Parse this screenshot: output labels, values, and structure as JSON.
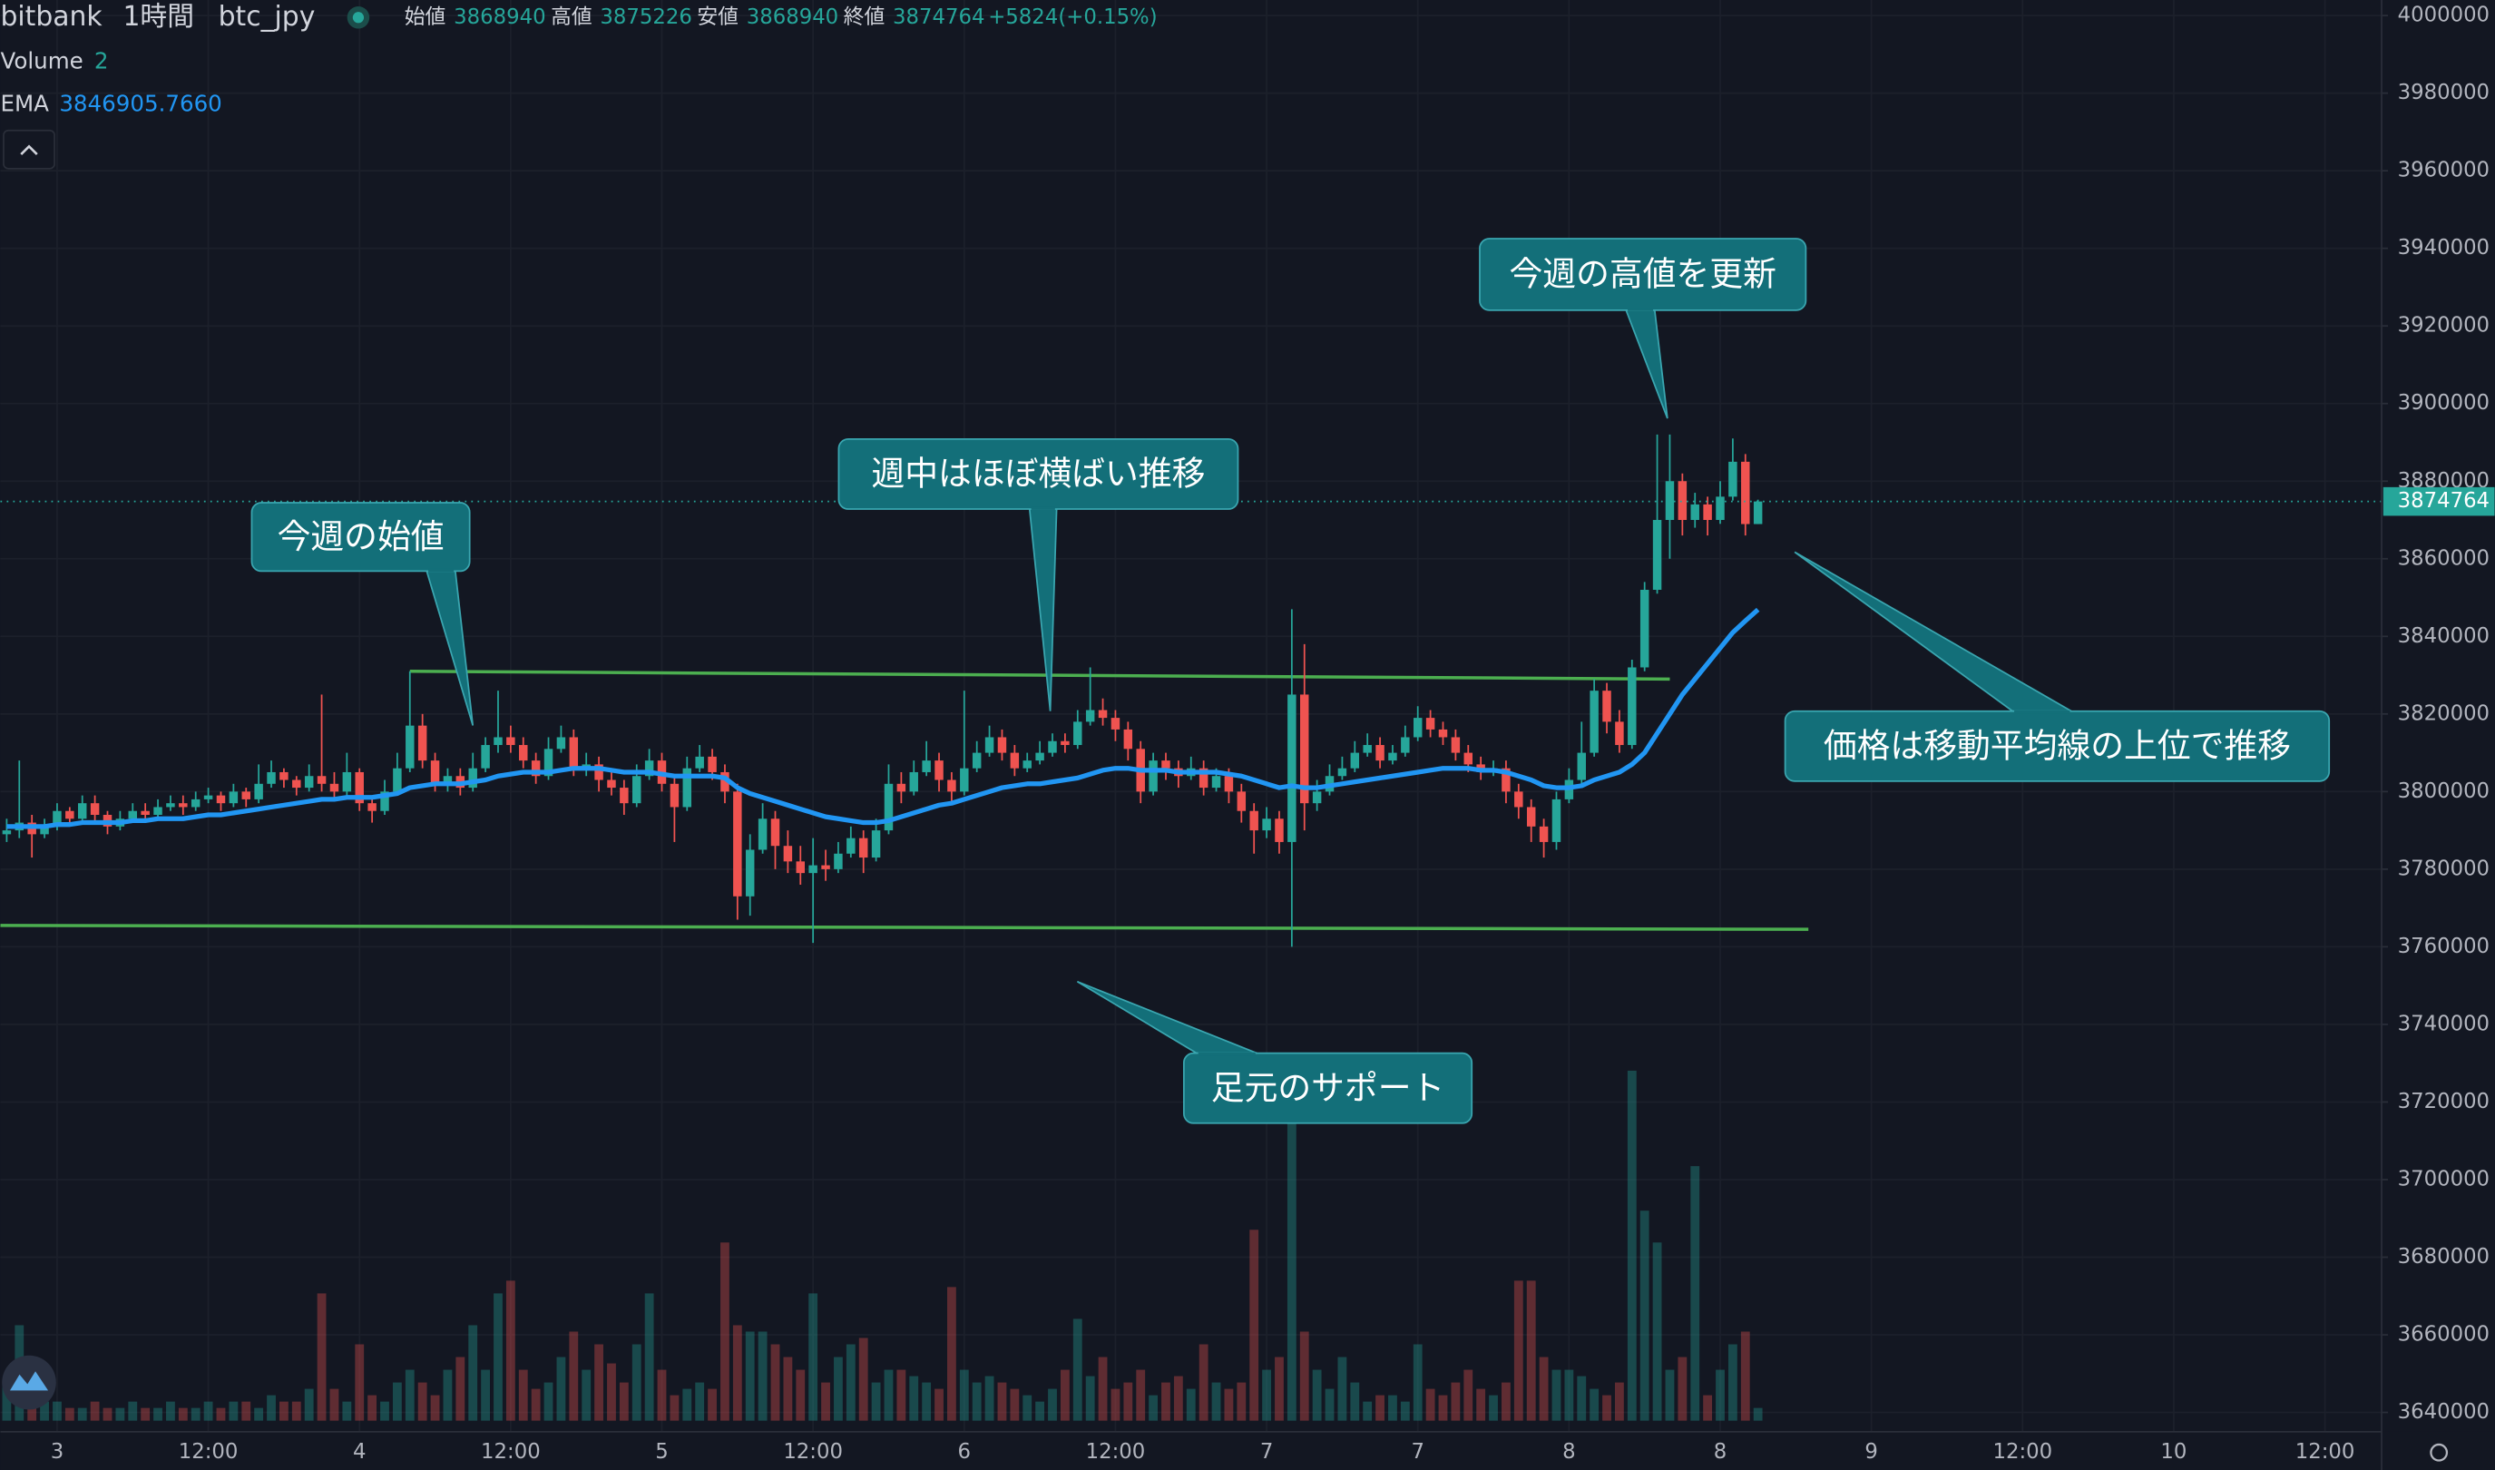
{
  "chart_data": {
    "type": "candlestick",
    "exchange": "bitbank",
    "interval": "1時間",
    "symbol": "btc_jpy",
    "legend_labels": {
      "open": "始値",
      "high": "高値",
      "low": "安値",
      "close": "終値"
    },
    "change": {
      "value": 5824,
      "label": "+5824"
    },
    "change_percent": {
      "value": 0.15,
      "label": "(+0.15%)"
    },
    "up_color": "#26a69a",
    "down_color": "#ef5350",
    "xlim": [
      -0.5,
      188.5
    ],
    "xticks": [
      {
        "value": 4,
        "label": "3"
      },
      {
        "value": 16,
        "label": "12:00"
      },
      {
        "value": 28,
        "label": "4"
      },
      {
        "value": 40,
        "label": "12:00"
      },
      {
        "value": 52,
        "label": "5"
      },
      {
        "value": 64,
        "label": "12:00"
      },
      {
        "value": 76,
        "label": "6"
      },
      {
        "value": 88,
        "label": "12:00"
      },
      {
        "value": 100,
        "label": "7"
      },
      {
        "value": 112,
        "label": "7"
      },
      {
        "value": 124,
        "label": "8"
      },
      {
        "value": 136,
        "label": "8"
      },
      {
        "value": 148,
        "label": "9"
      },
      {
        "value": 160,
        "label": "12:00"
      },
      {
        "value": 172,
        "label": "10"
      },
      {
        "value": 184,
        "label": "12:00"
      }
    ],
    "ylim": [
      3635000,
      4004000
    ],
    "yticks": [
      3640000,
      3660000,
      3680000,
      3700000,
      3720000,
      3740000,
      3760000,
      3780000,
      3800000,
      3820000,
      3840000,
      3860000,
      3880000,
      3900000,
      3920000,
      3940000,
      3960000,
      3980000,
      4000000
    ],
    "grid": true,
    "ohlc": [
      [
        3789000,
        3793000,
        3787000,
        3790000
      ],
      [
        3790000,
        3808000,
        3788000,
        3792000
      ],
      [
        3792000,
        3794000,
        3783000,
        3789000
      ],
      [
        3789000,
        3793000,
        3788000,
        3791000
      ],
      [
        3791000,
        3797000,
        3790000,
        3795000
      ],
      [
        3795000,
        3796000,
        3791000,
        3793000
      ],
      [
        3793000,
        3799000,
        3792000,
        3797000
      ],
      [
        3797000,
        3799000,
        3792000,
        3794000
      ],
      [
        3794000,
        3795000,
        3789000,
        3791000
      ],
      [
        3791000,
        3795000,
        3790000,
        3793000
      ],
      [
        3793000,
        3797000,
        3792000,
        3795000
      ],
      [
        3795000,
        3797000,
        3792000,
        3794000
      ],
      [
        3794000,
        3798000,
        3793000,
        3796000
      ],
      [
        3796000,
        3799000,
        3795000,
        3797000
      ],
      [
        3797000,
        3799000,
        3794000,
        3796000
      ],
      [
        3796000,
        3800000,
        3795000,
        3798000
      ],
      [
        3798000,
        3801000,
        3797000,
        3799000
      ],
      [
        3799000,
        3800000,
        3795000,
        3797000
      ],
      [
        3797000,
        3802000,
        3796000,
        3800000
      ],
      [
        3800000,
        3801000,
        3796000,
        3798000
      ],
      [
        3798000,
        3807000,
        3797000,
        3802000
      ],
      [
        3802000,
        3808000,
        3801000,
        3805000
      ],
      [
        3805000,
        3806000,
        3801000,
        3803000
      ],
      [
        3803000,
        3804000,
        3799000,
        3801000
      ],
      [
        3801000,
        3807000,
        3800000,
        3804000
      ],
      [
        3804000,
        3825000,
        3800000,
        3802000
      ],
      [
        3802000,
        3805000,
        3798000,
        3800000
      ],
      [
        3800000,
        3810000,
        3799000,
        3805000
      ],
      [
        3805000,
        3806000,
        3795000,
        3797000
      ],
      [
        3797000,
        3799000,
        3792000,
        3795000
      ],
      [
        3795000,
        3803000,
        3794000,
        3800000
      ],
      [
        3800000,
        3810000,
        3799000,
        3806000
      ],
      [
        3806000,
        3831000,
        3805000,
        3817000
      ],
      [
        3817000,
        3820000,
        3806000,
        3808000
      ],
      [
        3808000,
        3810000,
        3800000,
        3802000
      ],
      [
        3802000,
        3806000,
        3800000,
        3804000
      ],
      [
        3804000,
        3806000,
        3799000,
        3801000
      ],
      [
        3801000,
        3810000,
        3800000,
        3806000
      ],
      [
        3806000,
        3814000,
        3805000,
        3812000
      ],
      [
        3812000,
        3826000,
        3810000,
        3814000
      ],
      [
        3814000,
        3817000,
        3810000,
        3812000
      ],
      [
        3812000,
        3814000,
        3806000,
        3808000
      ],
      [
        3808000,
        3810000,
        3802000,
        3804000
      ],
      [
        3804000,
        3814000,
        3803000,
        3811000
      ],
      [
        3811000,
        3817000,
        3810000,
        3814000
      ],
      [
        3814000,
        3816000,
        3804000,
        3806000
      ],
      [
        3806000,
        3810000,
        3804000,
        3807000
      ],
      [
        3807000,
        3809000,
        3800000,
        3803000
      ],
      [
        3803000,
        3805000,
        3799000,
        3801000
      ],
      [
        3801000,
        3803000,
        3794000,
        3797000
      ],
      [
        3797000,
        3807000,
        3796000,
        3804000
      ],
      [
        3804000,
        3811000,
        3803000,
        3808000
      ],
      [
        3808000,
        3810000,
        3800000,
        3802000
      ],
      [
        3802000,
        3804000,
        3787000,
        3796000
      ],
      [
        3796000,
        3809000,
        3795000,
        3806000
      ],
      [
        3806000,
        3812000,
        3805000,
        3809000
      ],
      [
        3809000,
        3811000,
        3803000,
        3805000
      ],
      [
        3805000,
        3807000,
        3797000,
        3800000
      ],
      [
        3800000,
        3802000,
        3767000,
        3773000
      ],
      [
        3773000,
        3789000,
        3768000,
        3785000
      ],
      [
        3785000,
        3797000,
        3784000,
        3793000
      ],
      [
        3793000,
        3795000,
        3780000,
        3786000
      ],
      [
        3786000,
        3790000,
        3779000,
        3782000
      ],
      [
        3782000,
        3786000,
        3776000,
        3779000
      ],
      [
        3779000,
        3788000,
        3761000,
        3781000
      ],
      [
        3781000,
        3785000,
        3777000,
        3780000
      ],
      [
        3780000,
        3787000,
        3779000,
        3784000
      ],
      [
        3784000,
        3791000,
        3783000,
        3788000
      ],
      [
        3788000,
        3790000,
        3779000,
        3783000
      ],
      [
        3783000,
        3793000,
        3782000,
        3790000
      ],
      [
        3790000,
        3807000,
        3789000,
        3802000
      ],
      [
        3802000,
        3805000,
        3797000,
        3800000
      ],
      [
        3800000,
        3808000,
        3799000,
        3805000
      ],
      [
        3805000,
        3813000,
        3804000,
        3808000
      ],
      [
        3808000,
        3810000,
        3800000,
        3803000
      ],
      [
        3803000,
        3805000,
        3797000,
        3800000
      ],
      [
        3800000,
        3826000,
        3799000,
        3806000
      ],
      [
        3806000,
        3813000,
        3805000,
        3810000
      ],
      [
        3810000,
        3817000,
        3809000,
        3814000
      ],
      [
        3814000,
        3816000,
        3808000,
        3810000
      ],
      [
        3810000,
        3812000,
        3804000,
        3806000
      ],
      [
        3806000,
        3810000,
        3805000,
        3808000
      ],
      [
        3808000,
        3813000,
        3807000,
        3810000
      ],
      [
        3810000,
        3815000,
        3809000,
        3813000
      ],
      [
        3813000,
        3815000,
        3810000,
        3812000
      ],
      [
        3812000,
        3821000,
        3811000,
        3818000
      ],
      [
        3818000,
        3832000,
        3817000,
        3821000
      ],
      [
        3821000,
        3824000,
        3817000,
        3819000
      ],
      [
        3819000,
        3821000,
        3813000,
        3816000
      ],
      [
        3816000,
        3818000,
        3808000,
        3811000
      ],
      [
        3811000,
        3813000,
        3797000,
        3800000
      ],
      [
        3800000,
        3810000,
        3799000,
        3808000
      ],
      [
        3808000,
        3810000,
        3803000,
        3806000
      ],
      [
        3806000,
        3808000,
        3801000,
        3804000
      ],
      [
        3804000,
        3809000,
        3803000,
        3806000
      ],
      [
        3806000,
        3808000,
        3799000,
        3801000
      ],
      [
        3801000,
        3806000,
        3800000,
        3804000
      ],
      [
        3804000,
        3806000,
        3797000,
        3800000
      ],
      [
        3800000,
        3802000,
        3792000,
        3795000
      ],
      [
        3795000,
        3797000,
        3784000,
        3790000
      ],
      [
        3790000,
        3796000,
        3788000,
        3793000
      ],
      [
        3793000,
        3795000,
        3784000,
        3787000
      ],
      [
        3787000,
        3847000,
        3760000,
        3825000
      ],
      [
        3825000,
        3838000,
        3790000,
        3797000
      ],
      [
        3797000,
        3803000,
        3795000,
        3800000
      ],
      [
        3800000,
        3807000,
        3799000,
        3804000
      ],
      [
        3804000,
        3809000,
        3803000,
        3806000
      ],
      [
        3806000,
        3813000,
        3805000,
        3810000
      ],
      [
        3810000,
        3815000,
        3809000,
        3812000
      ],
      [
        3812000,
        3814000,
        3806000,
        3808000
      ],
      [
        3808000,
        3812000,
        3807000,
        3810000
      ],
      [
        3810000,
        3817000,
        3809000,
        3814000
      ],
      [
        3814000,
        3822000,
        3813000,
        3819000
      ],
      [
        3819000,
        3821000,
        3814000,
        3816000
      ],
      [
        3816000,
        3818000,
        3812000,
        3814000
      ],
      [
        3814000,
        3816000,
        3808000,
        3810000
      ],
      [
        3810000,
        3812000,
        3805000,
        3807000
      ],
      [
        3807000,
        3809000,
        3803000,
        3805000
      ],
      [
        3805000,
        3808000,
        3804000,
        3806000
      ],
      [
        3806000,
        3808000,
        3797000,
        3800000
      ],
      [
        3800000,
        3802000,
        3793000,
        3796000
      ],
      [
        3796000,
        3798000,
        3787000,
        3791000
      ],
      [
        3791000,
        3793000,
        3783000,
        3787000
      ],
      [
        3787000,
        3800000,
        3785000,
        3798000
      ],
      [
        3798000,
        3806000,
        3797000,
        3803000
      ],
      [
        3803000,
        3818000,
        3802000,
        3810000
      ],
      [
        3810000,
        3829000,
        3809000,
        3826000
      ],
      [
        3826000,
        3828000,
        3815000,
        3818000
      ],
      [
        3818000,
        3821000,
        3810000,
        3812000
      ],
      [
        3812000,
        3834000,
        3811000,
        3832000
      ],
      [
        3832000,
        3854000,
        3831000,
        3852000
      ],
      [
        3852000,
        3892000,
        3851000,
        3870000
      ],
      [
        3870000,
        3892000,
        3860000,
        3880000
      ],
      [
        3880000,
        3882000,
        3866000,
        3870000
      ],
      [
        3870000,
        3877000,
        3868000,
        3874000
      ],
      [
        3874000,
        3876000,
        3866000,
        3870000
      ],
      [
        3870000,
        3880000,
        3869000,
        3876000
      ],
      [
        3876000,
        3891000,
        3875000,
        3885000
      ],
      [
        3885000,
        3887000,
        3866000,
        3868940
      ],
      [
        3868940,
        3875226,
        3868940,
        3874764
      ]
    ],
    "volume": {
      "name": "Volume",
      "values": [
        6,
        15,
        4,
        3,
        3,
        2,
        2,
        3,
        2,
        2,
        3,
        2,
        2,
        3,
        2,
        2,
        3,
        2,
        3,
        3,
        2,
        4,
        3,
        3,
        5,
        20,
        5,
        3,
        12,
        4,
        3,
        6,
        8,
        6,
        4,
        8,
        10,
        15,
        8,
        20,
        22,
        8,
        5,
        6,
        10,
        14,
        8,
        12,
        9,
        6,
        12,
        20,
        8,
        4,
        5,
        6,
        5,
        28,
        15,
        14,
        14,
        12,
        10,
        8,
        20,
        6,
        10,
        12,
        13,
        6,
        8,
        8,
        7,
        6,
        5,
        21,
        8,
        6,
        7,
        6,
        5,
        4,
        3,
        5,
        8,
        16,
        7,
        10,
        5,
        6,
        8,
        4,
        6,
        7,
        5,
        12,
        6,
        5,
        6,
        30,
        8,
        10,
        47,
        14,
        8,
        5,
        10,
        6,
        3,
        4,
        4,
        3,
        12,
        5,
        4,
        6,
        8,
        5,
        4,
        6,
        22,
        22,
        10,
        8,
        8,
        7,
        5,
        4,
        6,
        55,
        33,
        28,
        8,
        10,
        40,
        4,
        8,
        12,
        14,
        2
      ]
    },
    "ema": {
      "name": "EMA",
      "color": "#2196f3",
      "last_value_label": "3846905.7660",
      "values": [
        3791000,
        3791000,
        3791000,
        3791000,
        3791500,
        3791500,
        3792000,
        3792000,
        3792000,
        3792000,
        3792500,
        3792500,
        3793000,
        3793000,
        3793000,
        3793500,
        3794000,
        3794000,
        3794500,
        3795000,
        3795500,
        3796000,
        3796500,
        3797000,
        3797500,
        3798000,
        3798000,
        3798500,
        3798500,
        3798500,
        3799000,
        3799500,
        3801000,
        3801500,
        3802000,
        3802000,
        3802000,
        3802500,
        3803000,
        3804000,
        3804500,
        3805000,
        3805000,
        3805000,
        3805500,
        3806000,
        3806000,
        3806000,
        3805500,
        3805000,
        3805000,
        3805000,
        3804500,
        3804000,
        3804000,
        3804000,
        3804000,
        3803500,
        3801000,
        3799500,
        3798500,
        3797500,
        3796500,
        3795500,
        3794500,
        3793500,
        3793000,
        3792500,
        3792000,
        3792000,
        3792500,
        3793500,
        3794500,
        3795500,
        3796500,
        3797000,
        3798000,
        3799000,
        3800000,
        3801000,
        3801500,
        3802000,
        3802000,
        3802500,
        3803000,
        3803500,
        3804500,
        3805500,
        3806000,
        3806000,
        3805500,
        3805500,
        3805500,
        3805000,
        3805000,
        3805000,
        3805000,
        3804500,
        3804000,
        3803000,
        3802000,
        3801000,
        3801500,
        3801000,
        3801000,
        3801500,
        3802000,
        3802500,
        3803000,
        3803500,
        3804000,
        3804500,
        3805000,
        3805500,
        3806000,
        3806000,
        3806000,
        3805500,
        3805500,
        3805000,
        3804000,
        3803000,
        3801500,
        3801000,
        3801000,
        3801500,
        3803000,
        3804000,
        3805000,
        3807000,
        3810000,
        3815000,
        3820000,
        3825000,
        3829000,
        3833000,
        3837000,
        3841000,
        3844000,
        3846905.766
      ]
    },
    "trend_lines": [
      {
        "color": "#4caf50",
        "x": [
          32,
          132
        ],
        "y": [
          3831000,
          3829000
        ]
      },
      {
        "color": "#4caf50",
        "x": [
          -0.5,
          143
        ],
        "y": [
          3765500,
          3764500
        ]
      }
    ],
    "annotations": [
      {
        "text": "今週の始値"
      },
      {
        "text": "週中はほぼ横ばい推移"
      },
      {
        "text": "今週の高値を更新"
      },
      {
        "text": "価格は移動平均線の上位で推移"
      },
      {
        "text": "足元のサポート"
      }
    ]
  }
}
